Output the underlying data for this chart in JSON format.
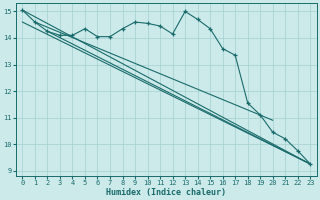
{
  "xlabel": "Humidex (Indice chaleur)",
  "background_color": "#cceaea",
  "grid_color": "#aad4d4",
  "line_color": "#1a6b6b",
  "xlim": [
    -0.5,
    23.5
  ],
  "ylim": [
    8.8,
    15.3
  ],
  "yticks": [
    9,
    10,
    11,
    12,
    13,
    14,
    15
  ],
  "xticks": [
    0,
    1,
    2,
    3,
    4,
    5,
    6,
    7,
    8,
    9,
    10,
    11,
    12,
    13,
    14,
    15,
    16,
    17,
    18,
    19,
    20,
    21,
    22,
    23
  ],
  "jagged_x": [
    0,
    1,
    2,
    3,
    4,
    5,
    6,
    7,
    8,
    9,
    10,
    11,
    12,
    13,
    14,
    15,
    16,
    17,
    18,
    19,
    20,
    21,
    22,
    23
  ],
  "jagged_y": [
    15.05,
    14.6,
    14.25,
    14.1,
    14.1,
    14.35,
    14.05,
    14.05,
    14.35,
    14.6,
    14.55,
    14.45,
    14.15,
    15.0,
    14.7,
    14.35,
    13.6,
    13.35,
    11.55,
    11.1,
    10.45,
    10.2,
    9.75,
    9.25
  ],
  "line1_x": [
    0,
    23
  ],
  "line1_y": [
    15.05,
    9.25
  ],
  "line2_x": [
    0,
    23
  ],
  "line2_y": [
    14.6,
    9.25
  ],
  "line3_x": [
    1,
    20
  ],
  "line3_y": [
    14.6,
    10.9
  ],
  "line4_x": [
    2,
    23
  ],
  "line4_y": [
    14.25,
    9.25
  ]
}
